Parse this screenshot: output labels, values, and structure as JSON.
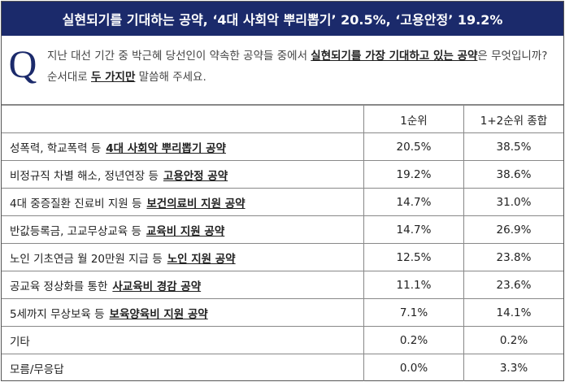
{
  "header": {
    "title": "실현되기를 기대하는 공약, ‘4대 사회악 뿌리뽑기’ 20.5%, ‘고용안정’ 19.2%"
  },
  "question": {
    "mark": "Q",
    "segments": [
      {
        "text": "지난 대선 기간 중 박근혜 당선인이 약속한 공약들 중에서 "
      },
      {
        "text": "실현되기를 가장 기대하고 있는 공약",
        "emphasis": true
      },
      {
        "text": "은 무엇입니까? 순서대로 "
      },
      {
        "text": "두 가지만",
        "emphasis": true
      },
      {
        "text": " 말씀해 주세요."
      }
    ]
  },
  "table": {
    "columns": [
      "1순위",
      "1+2순위 종합"
    ],
    "rows": [
      {
        "label": "성폭력, 학교폭력 등",
        "key": "4대 사회악 뿌리뽑기 공약",
        "values": [
          "20.5%",
          "38.5%"
        ]
      },
      {
        "label": "비정규직 차별 해소, 정년연장 등",
        "key": "고용안정 공약",
        "values": [
          "19.2%",
          "38.6%"
        ]
      },
      {
        "label": "4대 중증질환 진료비 지원 등",
        "key": "보건의료비 지원 공약",
        "values": [
          "14.7%",
          "31.0%"
        ]
      },
      {
        "label": "반값등록금, 고교무상교육 등",
        "key": "교육비 지원 공약",
        "values": [
          "14.7%",
          "26.9%"
        ]
      },
      {
        "label": "노인 기초연금 월 20만원 지급 등",
        "key": "노인 지원 공약",
        "values": [
          "12.5%",
          "23.8%"
        ]
      },
      {
        "label": "공교육 정상화를 통한",
        "key": "사교육비 경감 공약",
        "values": [
          "11.1%",
          "23.6%"
        ]
      },
      {
        "label": "5세까지 무상보육 등",
        "key": "보육양육비 지원 공약",
        "values": [
          "7.1%",
          "14.1%"
        ]
      },
      {
        "label": "기타",
        "values": [
          "0.2%",
          "0.2%"
        ]
      },
      {
        "label": "모름/무응답",
        "values": [
          "0.0%",
          "3.3%"
        ]
      }
    ]
  }
}
